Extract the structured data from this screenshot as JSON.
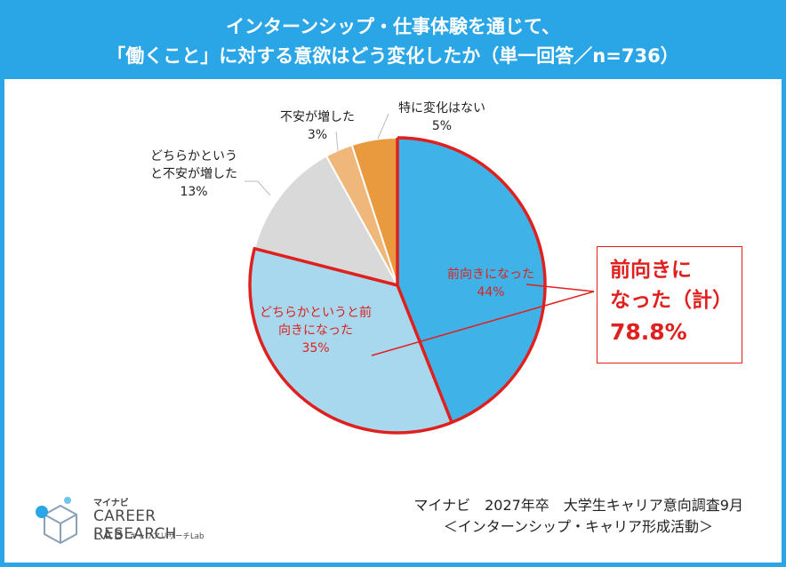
{
  "header": {
    "title_line1": "インターンシップ・仕事体験を通じて、",
    "title_line2": "「働くこと」に対する意欲はどう変化したか（単一回答／n=736）"
  },
  "chart_data": {
    "type": "pie",
    "title": "インターンシップ・仕事体験を通じて、「働くこと」に対する意欲はどう変化したか（単一回答／n=736）",
    "slices": [
      {
        "label_lines": [
          "前向きになった"
        ],
        "value_label": "44%",
        "value": 44,
        "color": "#3fb3e8",
        "label_color": "#e0201e"
      },
      {
        "label_lines": [
          "どちらかというと前",
          "向きになった"
        ],
        "value_label": "35%",
        "value": 35,
        "color": "#a8d8ee",
        "label_color": "#e0201e"
      },
      {
        "label_lines": [
          "どちらかという",
          "と不安が増した"
        ],
        "value_label": "13%",
        "value": 13,
        "color": "#d9d9d9",
        "label_color": "#222222"
      },
      {
        "label_lines": [
          "不安が増した"
        ],
        "value_label": "3%",
        "value": 3,
        "color": "#efb87a",
        "label_color": "#222222"
      },
      {
        "label_lines": [
          "特に変化はない"
        ],
        "value_label": "5%",
        "value": 5,
        "color": "#ea9a3e",
        "label_color": "#222222"
      }
    ],
    "highlight": {
      "label_line1": "前向きに",
      "label_line2": "なった（計）",
      "value_label": "78.8%",
      "value": 78.8,
      "color": "#e0201e"
    }
  },
  "source": {
    "line1": "マイナビ　2027年卒　大学生キャリア意向調査9月",
    "line2": "＜インターンシップ・キャリア形成活動＞"
  },
  "logo": {
    "kana": "マイナビ",
    "brand": "CAREER RESEARCH",
    "lab": "LAB",
    "sub": "キャリアリサーチLab"
  }
}
